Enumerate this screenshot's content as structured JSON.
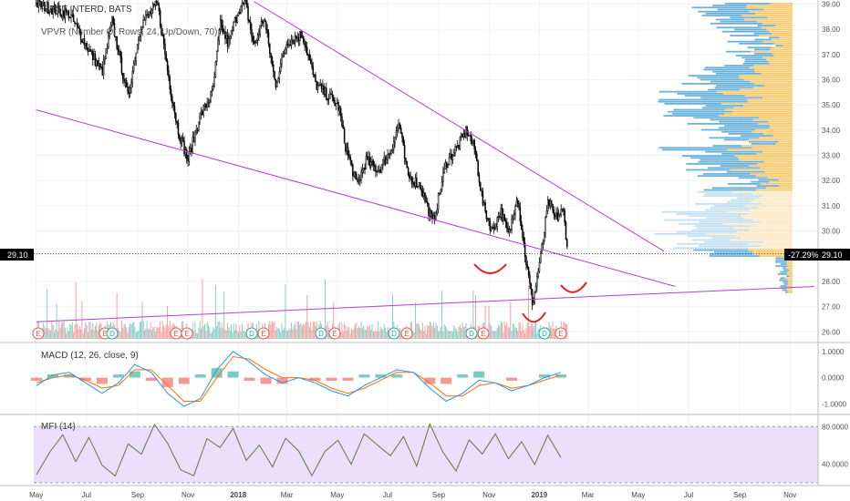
{
  "header": {
    "symbol": "FIRST INTERD, BATS",
    "vpvr": "VPVR (Number Of Rows, 24, Up/Down, 70)"
  },
  "price_label": "29.10",
  "percent_badge": "-27.29%",
  "price_badge": "29.10",
  "macd": {
    "title": "MACD (12, 26, close, 9)"
  },
  "mfi": {
    "title": "MFI (14)"
  },
  "colors": {
    "candle": "#000000",
    "trend": "#b43fd6",
    "up": "#26a69a",
    "down": "#ef5350",
    "vp_up": "#5aaad8",
    "vp_down": "#f7c45e",
    "macd": "#2196f3",
    "signal": "#ff6d00",
    "mfi": "#5a7a3f",
    "mfi_band": "#e9d7fb",
    "marker": "#e02020"
  },
  "chart_data": [
    {
      "type": "candlestick",
      "title": "FIRST INTERD, BATS",
      "x_tick_labels": [
        "May",
        "Jul",
        "Sep",
        "Nov",
        "2018",
        "Mar",
        "May",
        "Jul",
        "Sep",
        "Nov",
        "2019",
        "Mar",
        "May",
        "Jul",
        "Sep",
        "Nov"
      ],
      "y_tick_labels": [
        "39.00",
        "38.00",
        "37.00",
        "36.00",
        "35.00",
        "34.00",
        "33.00",
        "32.00",
        "31.00",
        "30.00",
        "29.00",
        "28.00",
        "27.00",
        "26.00"
      ],
      "ylim": [
        25.7,
        39.0
      ],
      "last_price": 29.1,
      "price_path": [
        [
          "2017-05-01",
          39.0
        ],
        [
          "2017-06-10",
          38.6
        ],
        [
          "2017-07-05",
          37.1
        ],
        [
          "2017-07-20",
          36.3
        ],
        [
          "2017-08-01",
          38.3
        ],
        [
          "2017-08-20",
          35.3
        ],
        [
          "2017-09-05",
          38.2
        ],
        [
          "2017-09-25",
          39.0
        ],
        [
          "2017-10-10",
          35.8
        ],
        [
          "2017-10-20",
          34.0
        ],
        [
          "2017-11-01",
          32.8
        ],
        [
          "2017-11-15",
          34.5
        ],
        [
          "2017-12-01",
          35.5
        ],
        [
          "2017-12-10",
          38.2
        ],
        [
          "2017-12-20",
          37.4
        ],
        [
          "2018-01-01",
          38.8
        ],
        [
          "2018-01-10",
          39.0
        ],
        [
          "2018-01-20",
          37.3
        ],
        [
          "2018-02-01",
          38.5
        ],
        [
          "2018-02-15",
          35.8
        ],
        [
          "2018-03-01",
          37.5
        ],
        [
          "2018-03-20",
          37.8
        ],
        [
          "2018-04-05",
          35.8
        ],
        [
          "2018-04-25",
          35.2
        ],
        [
          "2018-05-03",
          34.9
        ],
        [
          "2018-05-10",
          33.5
        ],
        [
          "2018-05-25",
          31.8
        ],
        [
          "2018-06-05",
          32.8
        ],
        [
          "2018-06-20",
          32.4
        ],
        [
          "2018-07-05",
          33.2
        ],
        [
          "2018-07-15",
          34.3
        ],
        [
          "2018-07-25",
          32.2
        ],
        [
          "2018-08-10",
          31.8
        ],
        [
          "2018-08-25",
          30.3
        ],
        [
          "2018-09-10",
          32.7
        ],
        [
          "2018-09-25",
          33.4
        ],
        [
          "2018-10-05",
          34.0
        ],
        [
          "2018-10-15",
          33.2
        ],
        [
          "2018-10-25",
          31.0
        ],
        [
          "2018-11-05",
          30.0
        ],
        [
          "2018-11-15",
          30.8
        ],
        [
          "2018-11-25",
          29.8
        ],
        [
          "2018-12-05",
          31.5
        ],
        [
          "2018-12-15",
          29.0
        ],
        [
          "2018-12-24",
          27.1
        ],
        [
          "2019-01-05",
          29.5
        ],
        [
          "2019-01-12",
          31.2
        ],
        [
          "2019-01-20",
          30.5
        ],
        [
          "2019-01-30",
          30.8
        ],
        [
          "2019-02-05",
          29.1
        ]
      ],
      "trendlines": [
        {
          "start": [
            "2018-01-20",
            39.1
          ],
          "end": [
            "2019-06-01",
            29.2
          ]
        },
        {
          "start": [
            "2017-05-01",
            34.8
          ],
          "end": [
            "2019-06-15",
            27.8
          ]
        },
        {
          "start": [
            "2017-05-01",
            26.4
          ],
          "end": [
            "2019-11-30",
            27.8
          ]
        }
      ],
      "event_markers": [
        "E",
        "E",
        "D",
        "E",
        "E",
        "D",
        "E",
        "D",
        "E",
        "D",
        "E",
        "D",
        "E"
      ]
    },
    {
      "type": "line",
      "title": "MACD (12, 26, close, 9)",
      "y_tick_labels": [
        "1.0000",
        "0.0000",
        "-1.0000"
      ],
      "ylim": [
        -1.3,
        1.2
      ],
      "series": [
        {
          "name": "MACD",
          "values": [
            -0.3,
            0.1,
            0.2,
            -0.2,
            -0.6,
            -0.2,
            0.5,
            0.2,
            -0.6,
            -1.1,
            -0.8,
            0.3,
            1.0,
            0.6,
            0.1,
            -0.2,
            0.0,
            -0.2,
            -0.5,
            -0.7,
            -0.3,
            0.0,
            0.3,
            0.2,
            -0.4,
            -0.9,
            -0.6,
            -0.1,
            -0.2,
            -0.5,
            -0.3,
            0.0,
            0.2
          ]
        },
        {
          "name": "Signal",
          "values": [
            -0.2,
            0.0,
            0.1,
            -0.1,
            -0.4,
            -0.3,
            0.3,
            0.3,
            -0.3,
            -0.9,
            -0.9,
            0.0,
            0.8,
            0.7,
            0.3,
            0.0,
            0.0,
            -0.1,
            -0.4,
            -0.6,
            -0.4,
            -0.1,
            0.2,
            0.2,
            -0.2,
            -0.7,
            -0.7,
            -0.3,
            -0.2,
            -0.4,
            -0.3,
            -0.1,
            0.1
          ]
        }
      ]
    },
    {
      "type": "line",
      "title": "MFI (14)",
      "y_tick_labels": [
        "80.0000",
        "40.0000"
      ],
      "ylim": [
        20,
        90
      ],
      "series": [
        {
          "name": "MFI",
          "values": [
            30,
            55,
            72,
            45,
            68,
            40,
            30,
            60,
            50,
            80,
            62,
            35,
            28,
            70,
            55,
            75,
            45,
            62,
            38,
            68,
            55,
            30,
            52,
            65,
            42,
            75,
            60,
            48,
            68,
            40,
            82,
            55,
            35,
            65,
            50,
            72,
            45,
            62,
            38,
            68,
            48
          ]
        }
      ]
    }
  ]
}
